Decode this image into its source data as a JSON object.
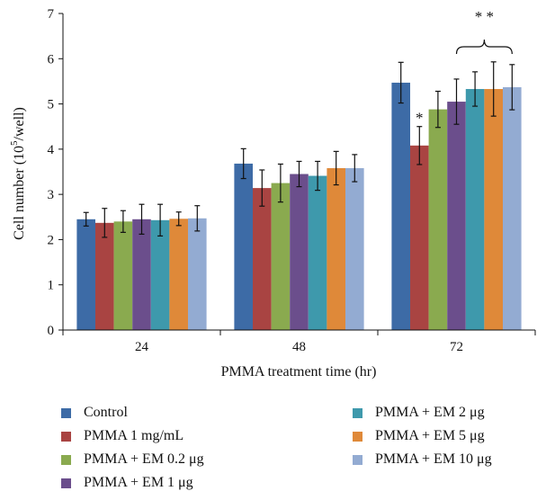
{
  "chart_data": {
    "type": "bar",
    "categories": [
      "24",
      "48",
      "72"
    ],
    "xlabel": "PMMA treatment time (hr)",
    "ylabel_main": "Cell number (10",
    "ylabel_sup": "5",
    "ylabel_tail": "/well)",
    "ylim": [
      0,
      7
    ],
    "yticks": [
      "0",
      "1",
      "2",
      "3",
      "4",
      "5",
      "6",
      "7"
    ],
    "grid": false,
    "legend_position": "bottom",
    "series": [
      {
        "name": "Control",
        "color": "#3D6BA6",
        "values": [
          2.45,
          3.68,
          5.47
        ],
        "errors": [
          0.15,
          0.33,
          0.45
        ]
      },
      {
        "name": "PMMA 1 mg/mL",
        "color": "#A94442",
        "values": [
          2.37,
          3.14,
          4.08
        ],
        "errors": [
          0.32,
          0.4,
          0.42
        ]
      },
      {
        "name": "PMMA + EM 0.2 μg",
        "color": "#8AAA4F",
        "values": [
          2.4,
          3.25,
          4.88
        ],
        "errors": [
          0.24,
          0.42,
          0.4
        ]
      },
      {
        "name": "PMMA + EM 1 μg",
        "color": "#6B4E8C",
        "values": [
          2.45,
          3.45,
          5.05
        ],
        "errors": [
          0.33,
          0.28,
          0.5
        ]
      },
      {
        "name": "PMMA + EM 2 μg",
        "color": "#3E99AC",
        "values": [
          2.43,
          3.41,
          5.33
        ],
        "errors": [
          0.35,
          0.32,
          0.38
        ]
      },
      {
        "name": "PMMA + EM 5 μg",
        "color": "#DF8939",
        "values": [
          2.46,
          3.58,
          5.33
        ],
        "errors": [
          0.15,
          0.37,
          0.6
        ]
      },
      {
        "name": "PMMA + EM 10 μg",
        "color": "#93ABD2",
        "values": [
          2.47,
          3.58,
          5.37
        ],
        "errors": [
          0.28,
          0.3,
          0.5
        ]
      }
    ],
    "annotations": [
      {
        "text": "*",
        "category": "72",
        "series": "PMMA 1 mg/mL"
      },
      {
        "text": "* *",
        "category": "72",
        "series_range": [
          "PMMA + EM 1 μg",
          "PMMA + EM 10 μg"
        ]
      }
    ]
  },
  "legend": {
    "items": [
      {
        "label": "Control",
        "color": "#3D6BA6"
      },
      {
        "label": "PMMA 1 mg/mL",
        "color": "#A94442"
      },
      {
        "label": "PMMA + EM 0.2 μg",
        "color": "#8AAA4F"
      },
      {
        "label": "PMMA + EM 1 μg",
        "color": "#6B4E8C"
      },
      {
        "label": "PMMA + EM 2 μg",
        "color": "#3E99AC"
      },
      {
        "label": "PMMA + EM 5 μg",
        "color": "#DF8939"
      },
      {
        "label": "PMMA + EM 10 μg",
        "color": "#93ABD2"
      }
    ]
  }
}
